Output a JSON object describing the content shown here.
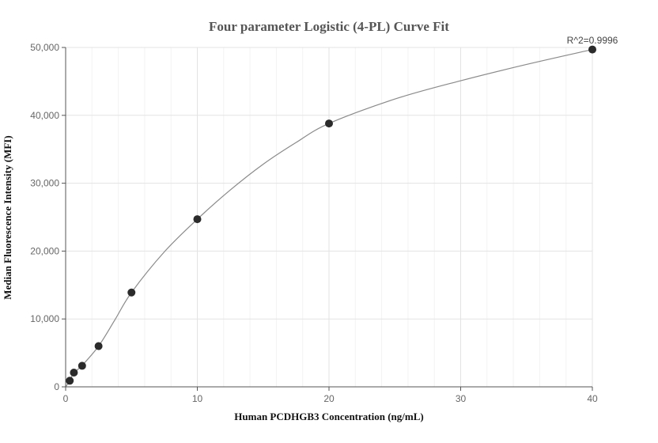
{
  "chart_data": {
    "type": "scatter",
    "title": "Four parameter Logistic (4-PL) Curve Fit",
    "xlabel": "Human PCDHGB3 Concentration (ng/mL)",
    "ylabel": "Median Fluorescence Intensity (MFI)",
    "xlim": [
      0,
      40
    ],
    "ylim": [
      0,
      50000
    ],
    "x_ticks": [
      0,
      10,
      20,
      30,
      40
    ],
    "x_tick_labels": [
      "0",
      "10",
      "20",
      "30",
      "40"
    ],
    "y_ticks": [
      0,
      10000,
      20000,
      30000,
      40000,
      50000
    ],
    "y_tick_labels": [
      "0",
      "10,000",
      "20,000",
      "30,000",
      "40,000",
      "50,000"
    ],
    "grid": true,
    "annotation": "R^2=0.9996",
    "series": [
      {
        "points": [
          {
            "x": 0.3125,
            "y": 900
          },
          {
            "x": 0.625,
            "y": 2100
          },
          {
            "x": 1.25,
            "y": 3100
          },
          {
            "x": 2.5,
            "y": 6000
          },
          {
            "x": 5,
            "y": 13900
          },
          {
            "x": 10,
            "y": 24700
          },
          {
            "x": 20,
            "y": 38800
          },
          {
            "x": 40,
            "y": 49700
          }
        ]
      }
    ],
    "fit_curve": {
      "model": "4PL",
      "points": [
        {
          "x": 0,
          "y": 0
        },
        {
          "x": 0.3125,
          "y": 900
        },
        {
          "x": 0.625,
          "y": 2050
        },
        {
          "x": 1.25,
          "y": 3150
        },
        {
          "x": 2.5,
          "y": 6000
        },
        {
          "x": 3.75,
          "y": 9900
        },
        {
          "x": 5,
          "y": 13900
        },
        {
          "x": 7.5,
          "y": 19900
        },
        {
          "x": 10,
          "y": 24700
        },
        {
          "x": 12.5,
          "y": 29000
        },
        {
          "x": 15,
          "y": 32800
        },
        {
          "x": 17.5,
          "y": 36000
        },
        {
          "x": 20,
          "y": 38800
        },
        {
          "x": 25,
          "y": 42400
        },
        {
          "x": 30,
          "y": 45100
        },
        {
          "x": 35,
          "y": 47500
        },
        {
          "x": 40,
          "y": 49700
        }
      ]
    },
    "colors": {
      "points": "#2b2b2b",
      "curve": "#8a8a8a",
      "grid": "#e3e3e3"
    }
  }
}
